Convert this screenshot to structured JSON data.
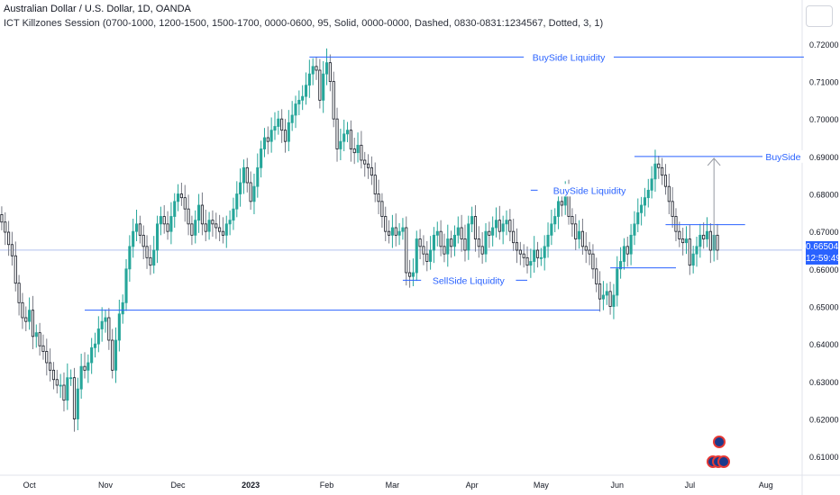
{
  "header": {
    "symbol_line": "Australian Dollar / U.S. Dollar, 1D, OANDA",
    "indicator_line": "ICT Killzones Session (0700-1000, 1200-1500, 1500-1700, 0000-0600, 95, Solid, 0000-0000, Dashed, 0830-0831:1234567, Dotted, 3, 1)"
  },
  "price_label": {
    "value": "0.66504",
    "countdown": "12:59:49"
  },
  "colors": {
    "up": "#26a69a",
    "down": "#787b86",
    "line": "#2962ff",
    "text_blue": "#2962ff",
    "axis_text": "#131722",
    "grid": "#f0f3fa"
  },
  "chart_data": {
    "type": "candlestick",
    "ylim": [
      0.605,
      0.725
    ],
    "y_ticks": [
      "0.72000",
      "0.71000",
      "0.70000",
      "0.69000",
      "0.68000",
      "0.67000",
      "0.66000",
      "0.65000",
      "0.64000",
      "0.63000",
      "0.62000",
      "0.61000"
    ],
    "y_tick_values": [
      0.72,
      0.71,
      0.7,
      0.69,
      0.68,
      0.67,
      0.66,
      0.65,
      0.64,
      0.63,
      0.62,
      0.61
    ],
    "x_ticks": [
      {
        "label": "Oct",
        "bar": 8
      },
      {
        "label": "Nov",
        "bar": 30
      },
      {
        "label": "Dec",
        "bar": 51
      },
      {
        "label": "2023",
        "bar": 72
      },
      {
        "label": "Feb",
        "bar": 94
      },
      {
        "label": "Mar",
        "bar": 113
      },
      {
        "label": "Apr",
        "bar": 136
      },
      {
        "label": "May",
        "bar": 156
      },
      {
        "label": "Jun",
        "bar": 178
      },
      {
        "label": "Jul",
        "bar": 199
      },
      {
        "label": "Aug",
        "bar": 221
      }
    ],
    "bars_total_slots": 232,
    "closes": [
      0.6725,
      0.6698,
      0.6665,
      0.6635,
      0.6562,
      0.651,
      0.647,
      0.646,
      0.649,
      0.642,
      0.643,
      0.6395,
      0.638,
      0.635,
      0.633,
      0.6305,
      0.629,
      0.629,
      0.625,
      0.631,
      0.631,
      0.62,
      0.628,
      0.634,
      0.633,
      0.635,
      0.639,
      0.64,
      0.644,
      0.646,
      0.647,
      0.641,
      0.633,
      0.641,
      0.648,
      0.651,
      0.66,
      0.666,
      0.67,
      0.672,
      0.669,
      0.666,
      0.663,
      0.661,
      0.665,
      0.672,
      0.674,
      0.672,
      0.67,
      0.674,
      0.678,
      0.68,
      0.679,
      0.676,
      0.672,
      0.669,
      0.673,
      0.677,
      0.672,
      0.67,
      0.673,
      0.672,
      0.671,
      0.67,
      0.669,
      0.672,
      0.673,
      0.676,
      0.68,
      0.683,
      0.687,
      0.683,
      0.678,
      0.682,
      0.687,
      0.692,
      0.695,
      0.694,
      0.697,
      0.698,
      0.7,
      0.697,
      0.694,
      0.699,
      0.701,
      0.704,
      0.705,
      0.706,
      0.709,
      0.712,
      0.714,
      0.713,
      0.705,
      0.712,
      0.715,
      0.71,
      0.7,
      0.692,
      0.694,
      0.696,
      0.697,
      0.692,
      0.691,
      0.693,
      0.689,
      0.688,
      0.687,
      0.685,
      0.68,
      0.678,
      0.674,
      0.67,
      0.669,
      0.671,
      0.669,
      0.67,
      0.671,
      0.659,
      0.658,
      0.659,
      0.668,
      0.666,
      0.664,
      0.662,
      0.665,
      0.669,
      0.67,
      0.666,
      0.664,
      0.668,
      0.666,
      0.669,
      0.671,
      0.668,
      0.665,
      0.672,
      0.674,
      0.668,
      0.666,
      0.664,
      0.67,
      0.669,
      0.671,
      0.673,
      0.67,
      0.672,
      0.673,
      0.67,
      0.667,
      0.665,
      0.664,
      0.663,
      0.661,
      0.662,
      0.665,
      0.663,
      0.663,
      0.666,
      0.669,
      0.672,
      0.674,
      0.678,
      0.677,
      0.68,
      0.674,
      0.672,
      0.668,
      0.67,
      0.666,
      0.665,
      0.664,
      0.66,
      0.656,
      0.652,
      0.653,
      0.654,
      0.65,
      0.653,
      0.66,
      0.662,
      0.666,
      0.664,
      0.669,
      0.672,
      0.675,
      0.677,
      0.679,
      0.681,
      0.684,
      0.688,
      0.687,
      0.685,
      0.682,
      0.678,
      0.674,
      0.67,
      0.668,
      0.667,
      0.668,
      0.661,
      0.664,
      0.666,
      0.669,
      0.668,
      0.67,
      0.665,
      0.669,
      0.665
    ]
  },
  "annotations": [
    {
      "text": "BuySide Liquidity",
      "y": 0.7165,
      "x1_bar": 89,
      "x2_bar": 232,
      "label_bar": 164
    },
    {
      "text": "BuySide",
      "y": 0.69,
      "x1_bar": 183,
      "x2_bar": 222,
      "label_bar": 226,
      "label_side": "right"
    },
    {
      "text": "BuySide Liquidity",
      "y": 0.681,
      "x1_bar": 153,
      "x2_bar": 155,
      "label_bar": 170,
      "short": true
    },
    {
      "text": "SellSide Liquidity",
      "y": 0.657,
      "x1_bar": 116,
      "x2_bar": 152,
      "label_bar": 135
    },
    {
      "text": "",
      "y": 0.649,
      "x1_bar": 24,
      "x2_bar": 173
    },
    {
      "text": "",
      "y": 0.6718,
      "x1_bar": 192,
      "x2_bar": 215
    },
    {
      "text": "",
      "y": 0.6603,
      "x1_bar": 176,
      "x2_bar": 195
    }
  ],
  "current_price": 0.66504,
  "arrow": {
    "bar": 206,
    "y_from": 0.665,
    "y_to": 0.6895
  }
}
